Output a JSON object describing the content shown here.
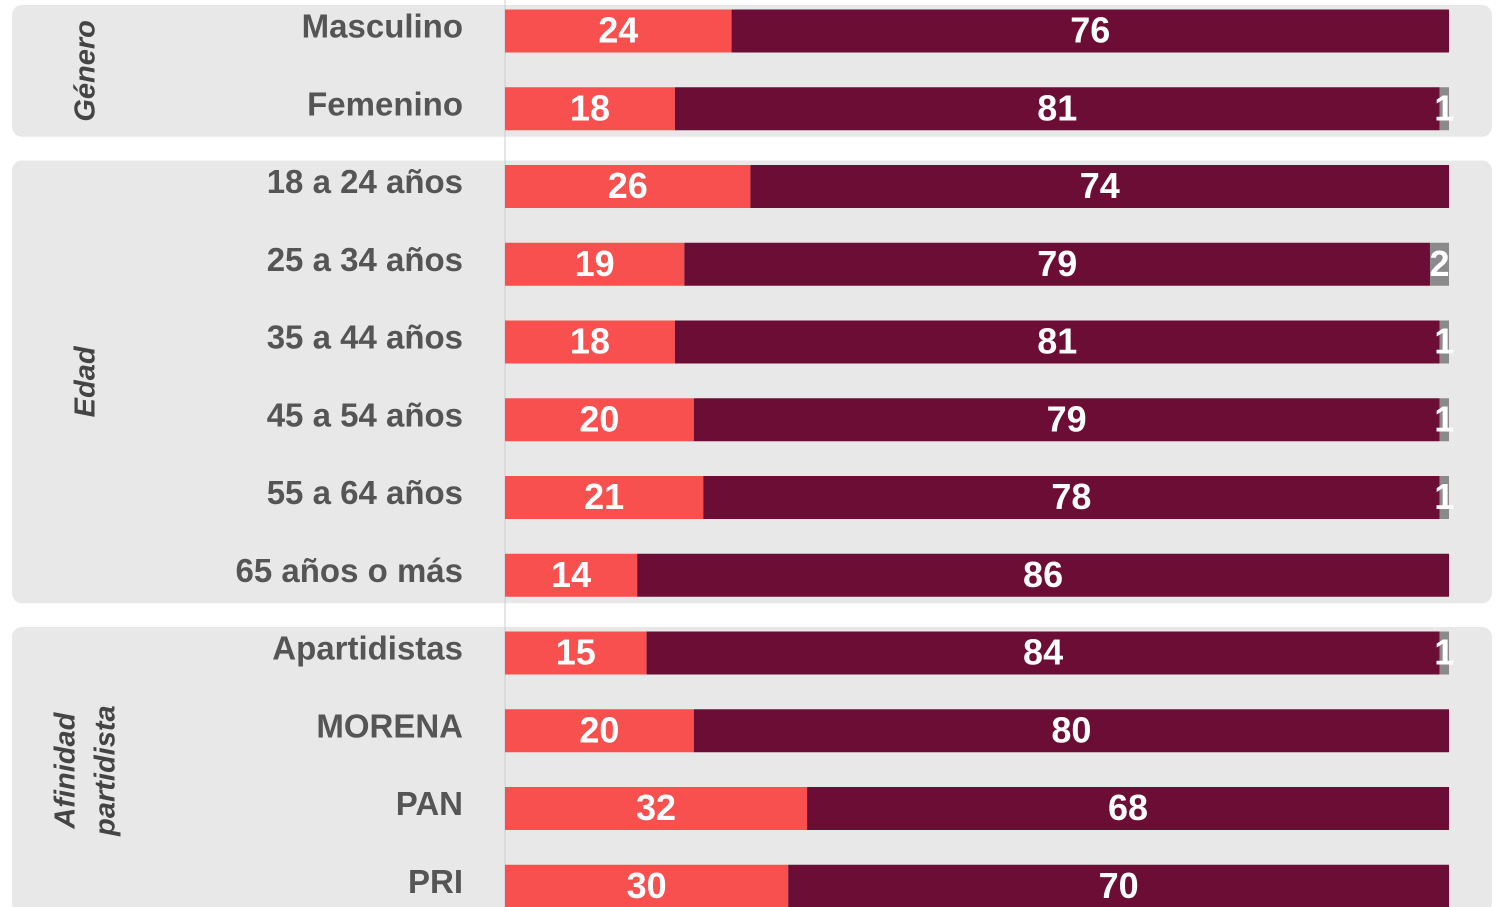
{
  "chart_data": {
    "type": "bar",
    "orientation": "horizontal",
    "stacked": true,
    "groups": [
      {
        "label": [
          "Género"
        ],
        "categories": [
          "Masculino",
          "Femenino"
        ]
      },
      {
        "label": [
          "Edad"
        ],
        "categories": [
          "18 a 24 años",
          "25 a 34 años",
          "35 a 44 años",
          "45 a 54 años",
          "55 a 64 años",
          "65 años o más"
        ]
      },
      {
        "label": [
          "Afinidad",
          "partidista"
        ],
        "categories": [
          "Apartidistas",
          "MORENA",
          "PAN",
          "PRI"
        ]
      }
    ],
    "series": [
      {
        "color": "#f84f4f",
        "values": [
          24,
          18,
          26,
          19,
          18,
          20,
          21,
          14,
          15,
          20,
          32,
          30
        ]
      },
      {
        "color": "#6b0d35",
        "values": [
          76,
          81,
          74,
          79,
          81,
          79,
          78,
          86,
          84,
          80,
          68,
          70
        ]
      },
      {
        "color": "#8a8a8a",
        "values": [
          null,
          1,
          null,
          2,
          1,
          1,
          1,
          null,
          1,
          null,
          null,
          null
        ]
      }
    ],
    "xlim": [
      0,
      100
    ]
  }
}
